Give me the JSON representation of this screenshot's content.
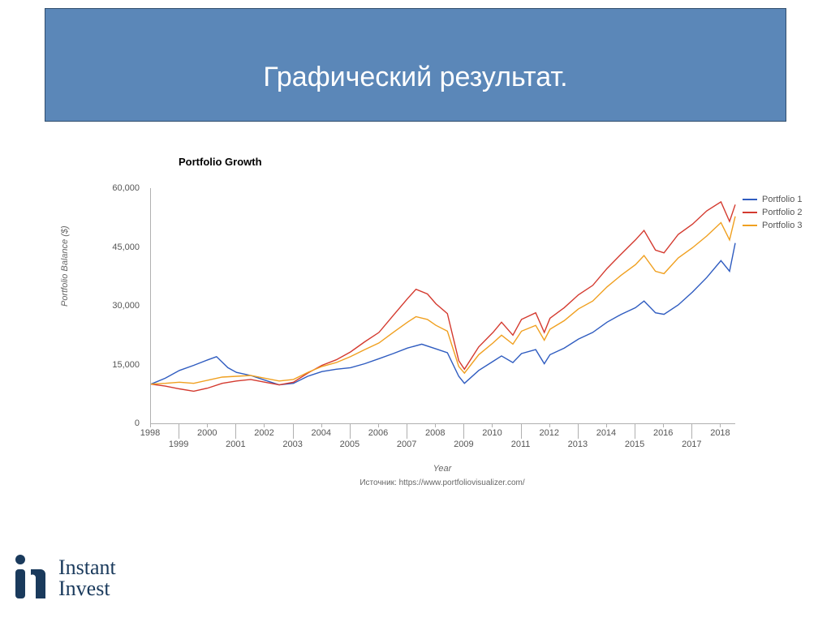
{
  "title": "Графический результат.",
  "title_bar": {
    "background": "#5b87b8",
    "border": "#2f4d6d",
    "text_color": "#ffffff",
    "fontsize": 34
  },
  "chart": {
    "type": "line",
    "title": "Portfolio Growth",
    "title_fontsize": 13,
    "ylabel": "Portfolio Balance ($)",
    "xlabel": "Year",
    "label_fontsize": 11,
    "background_color": "#ffffff",
    "axis_color": "#b0b0b0",
    "tick_fontsize": 11,
    "tick_color": "#555555",
    "xlim": [
      1998,
      2018.5
    ],
    "ylim": [
      0,
      60000
    ],
    "yticks": [
      0,
      15000,
      30000,
      45000,
      60000
    ],
    "ytick_labels": [
      "0",
      "15,000",
      "30,000",
      "45,000",
      "60,000"
    ],
    "xticks": [
      1998,
      1999,
      2000,
      2001,
      2002,
      2003,
      2004,
      2005,
      2006,
      2007,
      2008,
      2009,
      2010,
      2011,
      2012,
      2013,
      2014,
      2015,
      2016,
      2017,
      2018
    ],
    "xtick_row": [
      0,
      1,
      0,
      1,
      0,
      1,
      0,
      1,
      0,
      1,
      0,
      1,
      0,
      1,
      0,
      1,
      0,
      1,
      0,
      1,
      0
    ],
    "line_width": 1.4,
    "series": [
      {
        "name": "Portfolio 1",
        "color": "#2f5cc0",
        "x": [
          1998,
          1998.5,
          1999,
          1999.5,
          2000,
          2000.3,
          2000.7,
          2001,
          2001.5,
          2002,
          2002.5,
          2003,
          2003.5,
          2004,
          2004.5,
          2005,
          2005.5,
          2006,
          2006.5,
          2007,
          2007.5,
          2008,
          2008.4,
          2008.8,
          2009,
          2009.5,
          2010,
          2010.3,
          2010.7,
          2011,
          2011.5,
          2011.8,
          2012,
          2012.5,
          2013,
          2013.5,
          2014,
          2014.5,
          2015,
          2015.3,
          2015.7,
          2016,
          2016.5,
          2017,
          2017.5,
          2018,
          2018.3,
          2018.5
        ],
        "y": [
          10000,
          11500,
          13500,
          14800,
          16200,
          17000,
          14200,
          13000,
          12200,
          11000,
          9800,
          10200,
          12000,
          13200,
          13800,
          14200,
          15200,
          16500,
          17800,
          19200,
          20200,
          19000,
          18000,
          12000,
          10200,
          13500,
          15800,
          17200,
          15500,
          17800,
          18800,
          15200,
          17500,
          19200,
          21500,
          23200,
          25800,
          27800,
          29500,
          31200,
          28200,
          27800,
          30200,
          33500,
          37200,
          41500,
          38800,
          46000
        ]
      },
      {
        "name": "Portfolio 2",
        "color": "#d43a2f",
        "x": [
          1998,
          1998.5,
          1999,
          1999.5,
          2000,
          2000.5,
          2001,
          2001.5,
          2002,
          2002.5,
          2003,
          2003.5,
          2004,
          2004.5,
          2005,
          2005.5,
          2006,
          2006.5,
          2007,
          2007.3,
          2007.7,
          2008,
          2008.4,
          2008.8,
          2009,
          2009.5,
          2010,
          2010.3,
          2010.7,
          2011,
          2011.5,
          2011.8,
          2012,
          2012.5,
          2013,
          2013.5,
          2014,
          2014.5,
          2015,
          2015.3,
          2015.7,
          2016,
          2016.5,
          2017,
          2017.5,
          2018,
          2018.3,
          2018.5
        ],
        "y": [
          10000,
          9500,
          8800,
          8200,
          9000,
          10200,
          10800,
          11200,
          10500,
          9800,
          10500,
          12800,
          14800,
          16200,
          18200,
          20800,
          23200,
          27500,
          31800,
          34200,
          33000,
          30500,
          28000,
          16000,
          13800,
          19500,
          23200,
          25800,
          22500,
          26500,
          28200,
          23200,
          26800,
          29500,
          32800,
          35200,
          39500,
          43200,
          46800,
          49200,
          44200,
          43500,
          48200,
          50800,
          54200,
          56500,
          51500,
          55800
        ]
      },
      {
        "name": "Portfolio 3",
        "color": "#f0a020",
        "x": [
          1998,
          1998.5,
          1999,
          1999.5,
          2000,
          2000.5,
          2001,
          2001.5,
          2002,
          2002.5,
          2003,
          2003.5,
          2004,
          2004.5,
          2005,
          2005.5,
          2006,
          2006.5,
          2007,
          2007.3,
          2007.7,
          2008,
          2008.4,
          2008.8,
          2009,
          2009.5,
          2010,
          2010.3,
          2010.7,
          2011,
          2011.5,
          2011.8,
          2012,
          2012.5,
          2013,
          2013.5,
          2014,
          2014.5,
          2015,
          2015.3,
          2015.7,
          2016,
          2016.5,
          2017,
          2017.5,
          2018,
          2018.3,
          2018.5
        ],
        "y": [
          10000,
          10200,
          10500,
          10200,
          11000,
          11800,
          12000,
          12200,
          11500,
          10800,
          11200,
          13000,
          14500,
          15500,
          17000,
          18800,
          20500,
          23200,
          25800,
          27200,
          26500,
          25000,
          23500,
          14500,
          12800,
          17500,
          20500,
          22500,
          20200,
          23500,
          25000,
          21200,
          24000,
          26200,
          29200,
          31200,
          34800,
          37800,
          40500,
          42800,
          38800,
          38200,
          42200,
          44800,
          47800,
          51200,
          46800,
          52800
        ]
      }
    ],
    "legend": {
      "items": [
        "Portfolio 1",
        "Portfolio 2",
        "Portfolio 3"
      ],
      "colors": [
        "#2f5cc0",
        "#d43a2f",
        "#f0a020"
      ],
      "fontsize": 11
    }
  },
  "source": "Источник: https://www.portfoliovisualizer.com/",
  "logo": {
    "line1": "Instant",
    "line2": "Invest",
    "color": "#1a3a5c"
  }
}
